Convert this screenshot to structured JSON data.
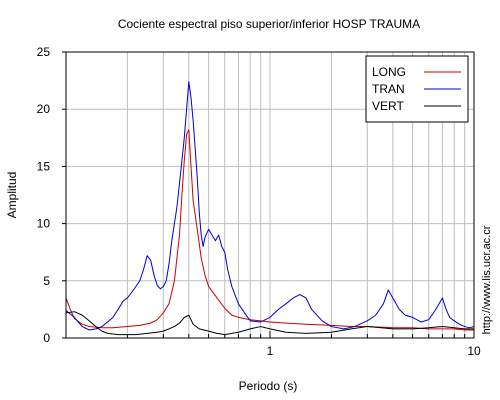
{
  "chart_data": {
    "type": "line",
    "title": "Cociente espectral piso superior/inferior  HOSP TRAUMA",
    "xlabel": "Periodo (s)",
    "ylabel": "Amplitud",
    "x_scale": "log",
    "xlim": [
      0.1,
      10
    ],
    "ylim": [
      0,
      25
    ],
    "x_tick_labels": [
      {
        "value": 1,
        "label": "1"
      },
      {
        "value": 10,
        "label": "10"
      }
    ],
    "y_ticks": [
      0,
      5,
      10,
      15,
      20,
      25
    ],
    "grid": true,
    "legend_position": "top-right",
    "side_text": "http://www.lis.ucr.ac.cr",
    "series": [
      {
        "name": "LONG",
        "color": "#cc0000",
        "points": [
          [
            0.1,
            3.5
          ],
          [
            0.105,
            2.5
          ],
          [
            0.11,
            1.7
          ],
          [
            0.12,
            1.2
          ],
          [
            0.13,
            1.0
          ],
          [
            0.15,
            0.9
          ],
          [
            0.17,
            0.9
          ],
          [
            0.2,
            1.0
          ],
          [
            0.23,
            1.1
          ],
          [
            0.26,
            1.3
          ],
          [
            0.28,
            1.6
          ],
          [
            0.3,
            2.2
          ],
          [
            0.32,
            3.0
          ],
          [
            0.34,
            5.0
          ],
          [
            0.36,
            9.0
          ],
          [
            0.37,
            12.5
          ],
          [
            0.38,
            15.5
          ],
          [
            0.39,
            17.8
          ],
          [
            0.4,
            18.2
          ],
          [
            0.41,
            15.0
          ],
          [
            0.42,
            12.0
          ],
          [
            0.44,
            9.5
          ],
          [
            0.46,
            7.0
          ],
          [
            0.48,
            5.5
          ],
          [
            0.5,
            4.5
          ],
          [
            0.55,
            3.5
          ],
          [
            0.6,
            2.6
          ],
          [
            0.65,
            2.0
          ],
          [
            0.7,
            1.8
          ],
          [
            0.8,
            1.6
          ],
          [
            0.9,
            1.5
          ],
          [
            1.0,
            1.4
          ],
          [
            1.2,
            1.3
          ],
          [
            1.5,
            1.2
          ],
          [
            2.0,
            1.1
          ],
          [
            2.5,
            1.0
          ],
          [
            3.0,
            1.0
          ],
          [
            4.0,
            0.9
          ],
          [
            5.0,
            0.9
          ],
          [
            6.0,
            0.8
          ],
          [
            7.0,
            0.8
          ],
          [
            8.0,
            0.8
          ],
          [
            9.0,
            0.7
          ],
          [
            10.0,
            0.7
          ]
        ]
      },
      {
        "name": "TRAN",
        "color": "#0000cc",
        "points": [
          [
            0.1,
            2.4
          ],
          [
            0.11,
            1.8
          ],
          [
            0.12,
            1.0
          ],
          [
            0.13,
            0.7
          ],
          [
            0.14,
            0.8
          ],
          [
            0.15,
            1.0
          ],
          [
            0.16,
            1.4
          ],
          [
            0.17,
            1.8
          ],
          [
            0.18,
            2.5
          ],
          [
            0.19,
            3.2
          ],
          [
            0.2,
            3.5
          ],
          [
            0.21,
            4.0
          ],
          [
            0.22,
            4.5
          ],
          [
            0.23,
            5.0
          ],
          [
            0.24,
            6.0
          ],
          [
            0.25,
            7.2
          ],
          [
            0.26,
            6.8
          ],
          [
            0.27,
            5.5
          ],
          [
            0.28,
            4.6
          ],
          [
            0.29,
            4.3
          ],
          [
            0.3,
            4.5
          ],
          [
            0.31,
            5.0
          ],
          [
            0.32,
            6.5
          ],
          [
            0.33,
            8.5
          ],
          [
            0.34,
            10.0
          ],
          [
            0.35,
            11.5
          ],
          [
            0.36,
            13.5
          ],
          [
            0.37,
            15.5
          ],
          [
            0.38,
            17.5
          ],
          [
            0.39,
            20.0
          ],
          [
            0.4,
            22.4
          ],
          [
            0.41,
            21.0
          ],
          [
            0.42,
            19.0
          ],
          [
            0.43,
            16.5
          ],
          [
            0.44,
            14.0
          ],
          [
            0.45,
            11.0
          ],
          [
            0.46,
            9.0
          ],
          [
            0.47,
            8.0
          ],
          [
            0.48,
            8.8
          ],
          [
            0.5,
            9.5
          ],
          [
            0.52,
            9.0
          ],
          [
            0.54,
            8.5
          ],
          [
            0.56,
            9.0
          ],
          [
            0.58,
            8.0
          ],
          [
            0.6,
            7.5
          ],
          [
            0.62,
            6.0
          ],
          [
            0.65,
            4.5
          ],
          [
            0.7,
            3.0
          ],
          [
            0.75,
            2.2
          ],
          [
            0.8,
            1.5
          ],
          [
            0.9,
            1.4
          ],
          [
            1.0,
            1.8
          ],
          [
            1.1,
            2.5
          ],
          [
            1.2,
            3.0
          ],
          [
            1.3,
            3.5
          ],
          [
            1.4,
            3.8
          ],
          [
            1.5,
            3.5
          ],
          [
            1.6,
            2.5
          ],
          [
            1.8,
            1.5
          ],
          [
            2.0,
            1.0
          ],
          [
            2.3,
            0.8
          ],
          [
            2.6,
            1.0
          ],
          [
            3.0,
            1.5
          ],
          [
            3.3,
            2.0
          ],
          [
            3.6,
            3.0
          ],
          [
            3.8,
            4.2
          ],
          [
            4.0,
            3.5
          ],
          [
            4.3,
            2.5
          ],
          [
            4.6,
            2.0
          ],
          [
            5.0,
            1.8
          ],
          [
            5.5,
            1.4
          ],
          [
            6.0,
            1.6
          ],
          [
            6.5,
            2.5
          ],
          [
            7.0,
            3.5
          ],
          [
            7.3,
            2.5
          ],
          [
            7.6,
            1.8
          ],
          [
            8.0,
            1.5
          ],
          [
            8.5,
            1.2
          ],
          [
            9.0,
            1.0
          ],
          [
            9.5,
            0.9
          ],
          [
            10.0,
            1.0
          ]
        ]
      },
      {
        "name": "VERT",
        "color": "#000000",
        "points": [
          [
            0.1,
            2.2
          ],
          [
            0.11,
            2.3
          ],
          [
            0.12,
            2.0
          ],
          [
            0.13,
            1.5
          ],
          [
            0.14,
            1.0
          ],
          [
            0.15,
            0.6
          ],
          [
            0.16,
            0.4
          ],
          [
            0.18,
            0.3
          ],
          [
            0.2,
            0.3
          ],
          [
            0.22,
            0.3
          ],
          [
            0.25,
            0.4
          ],
          [
            0.28,
            0.5
          ],
          [
            0.3,
            0.6
          ],
          [
            0.32,
            0.8
          ],
          [
            0.34,
            1.0
          ],
          [
            0.36,
            1.3
          ],
          [
            0.38,
            1.8
          ],
          [
            0.4,
            2.0
          ],
          [
            0.42,
            1.2
          ],
          [
            0.45,
            0.8
          ],
          [
            0.5,
            0.6
          ],
          [
            0.55,
            0.4
          ],
          [
            0.6,
            0.3
          ],
          [
            0.7,
            0.5
          ],
          [
            0.8,
            0.8
          ],
          [
            0.9,
            1.0
          ],
          [
            1.0,
            0.8
          ],
          [
            1.2,
            0.5
          ],
          [
            1.5,
            0.4
          ],
          [
            2.0,
            0.5
          ],
          [
            2.5,
            0.8
          ],
          [
            3.0,
            1.0
          ],
          [
            3.5,
            0.9
          ],
          [
            4.0,
            0.8
          ],
          [
            5.0,
            0.8
          ],
          [
            6.0,
            0.9
          ],
          [
            7.0,
            1.0
          ],
          [
            8.0,
            0.9
          ],
          [
            9.0,
            0.8
          ],
          [
            10.0,
            0.8
          ]
        ]
      }
    ]
  }
}
